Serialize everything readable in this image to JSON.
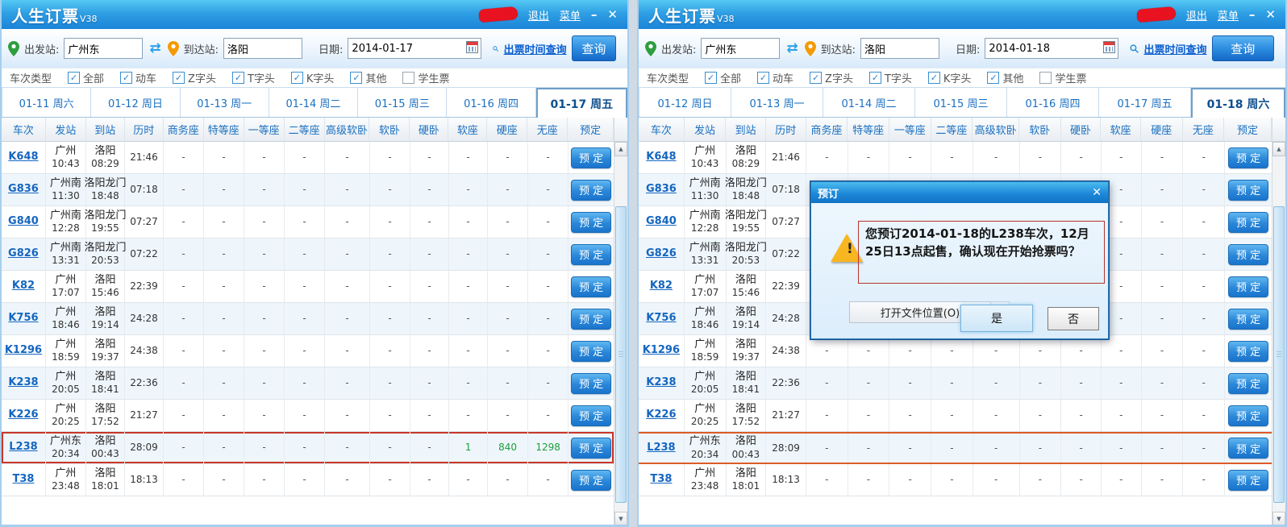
{
  "app": {
    "title": "人生订票",
    "version": "V38"
  },
  "titlebar": {
    "logout_label": "退出",
    "menu_label": "菜单",
    "minimize_glyph": "–",
    "close_glyph": "✕",
    "redaction_icon": "red-scribble"
  },
  "search": {
    "from_label": "出发站:",
    "from_value": "广州东",
    "to_label": "到达站:",
    "to_value": "洛阳",
    "date_label": "日期:",
    "ticket_time_link": "出票时间查询",
    "query_button": "查询"
  },
  "filters": {
    "label": "车次类型",
    "options": [
      {
        "label": "全部",
        "checked": true
      },
      {
        "label": "动车",
        "checked": true
      },
      {
        "label": "Z字头",
        "checked": true
      },
      {
        "label": "T字头",
        "checked": true
      },
      {
        "label": "K字头",
        "checked": true
      },
      {
        "label": "其他",
        "checked": true
      },
      {
        "label": "学生票",
        "checked": false
      }
    ]
  },
  "table": {
    "headers": [
      "车次",
      "发站",
      "到站",
      "历时",
      "商务座",
      "特等座",
      "一等座",
      "二等座",
      "高级软卧",
      "软卧",
      "硬卧",
      "软座",
      "硬座",
      "无座",
      "预定"
    ],
    "empty_value": "-",
    "book_button": "预 定"
  },
  "trains": [
    {
      "no": "K648",
      "from_station": "广州",
      "dep_time": "10:43",
      "to_station": "洛阳",
      "arr_time": "08:29",
      "duration": "21:46"
    },
    {
      "no": "G836",
      "from_station": "广州南",
      "dep_time": "11:30",
      "to_station": "洛阳龙门",
      "arr_time": "18:48",
      "duration": "07:18"
    },
    {
      "no": "G840",
      "from_station": "广州南",
      "dep_time": "12:28",
      "to_station": "洛阳龙门",
      "arr_time": "19:55",
      "duration": "07:27"
    },
    {
      "no": "G826",
      "from_station": "广州南",
      "dep_time": "13:31",
      "to_station": "洛阳龙门",
      "arr_time": "20:53",
      "duration": "07:22"
    },
    {
      "no": "K82",
      "from_station": "广州",
      "dep_time": "17:07",
      "to_station": "洛阳",
      "arr_time": "15:46",
      "duration": "22:39"
    },
    {
      "no": "K756",
      "from_station": "广州",
      "dep_time": "18:46",
      "to_station": "洛阳",
      "arr_time": "19:14",
      "duration": "24:28"
    },
    {
      "no": "K1296",
      "from_station": "广州",
      "dep_time": "18:59",
      "to_station": "洛阳",
      "arr_time": "19:37",
      "duration": "24:38"
    },
    {
      "no": "K238",
      "from_station": "广州",
      "dep_time": "20:05",
      "to_station": "洛阳",
      "arr_time": "18:41",
      "duration": "22:36"
    },
    {
      "no": "K226",
      "from_station": "广州",
      "dep_time": "20:25",
      "to_station": "洛阳",
      "arr_time": "17:52",
      "duration": "21:27"
    },
    {
      "no": "L238",
      "from_station": "广州东",
      "dep_time": "20:34",
      "to_station": "洛阳",
      "arr_time": "00:43",
      "duration": "28:09"
    },
    {
      "no": "T38",
      "from_station": "广州",
      "dep_time": "23:48",
      "to_station": "洛阳",
      "arr_time": "18:01",
      "duration": "18:13"
    }
  ],
  "windows": {
    "left": {
      "date_value": "2014-01-17",
      "tabs": [
        "01-11 周六",
        "01-12 周日",
        "01-13 周一",
        "01-14 周二",
        "01-15 周三",
        "01-16 周四",
        "01-17 周五"
      ],
      "selected_tab": 6,
      "highlight_train": "L238",
      "highlight_style": "full-red-border",
      "seat_overrides": {
        "L238": [
          "-",
          "-",
          "-",
          "-",
          "-",
          "-",
          "-",
          "1",
          "840",
          "1298"
        ]
      }
    },
    "right": {
      "date_value": "2014-01-18",
      "tabs": [
        "01-12 周日",
        "01-13 周一",
        "01-14 周二",
        "01-15 周三",
        "01-16 周四",
        "01-17 周五",
        "01-18 周六"
      ],
      "selected_tab": 6,
      "highlight_train": "L238",
      "highlight_style": "orange-top-bottom-lines",
      "seat_overrides": {}
    }
  },
  "dialog": {
    "title": "预订",
    "close_glyph": "✕",
    "warning_icon": "yellow-warning-triangle",
    "message": "您预订2014-01-18的L238车次，12月25日13点起售，确认现在开始抢票吗？",
    "open_file_button": "打开文件位置(O)",
    "yes_button": "是",
    "no_button": "否"
  },
  "icons": {
    "check": "✓",
    "swap": "⇄",
    "scroll_up": "▲",
    "scroll_down": "▼",
    "warning_mark": "!"
  },
  "colors": {
    "titlebar_blue": "#1b84d8",
    "link_blue": "#1566c0",
    "header_text_blue": "#1a6fc0",
    "book_button_blue": "#2a87d8",
    "seat_value_green": "#1f9e3c",
    "left_highlight_red": "#c9372a",
    "right_highlight_orange": "#dd5b28",
    "dialog_body_blue": "#dcedfb",
    "message_border_red": "#b5342c",
    "warning_yellow": "#f8b620"
  }
}
